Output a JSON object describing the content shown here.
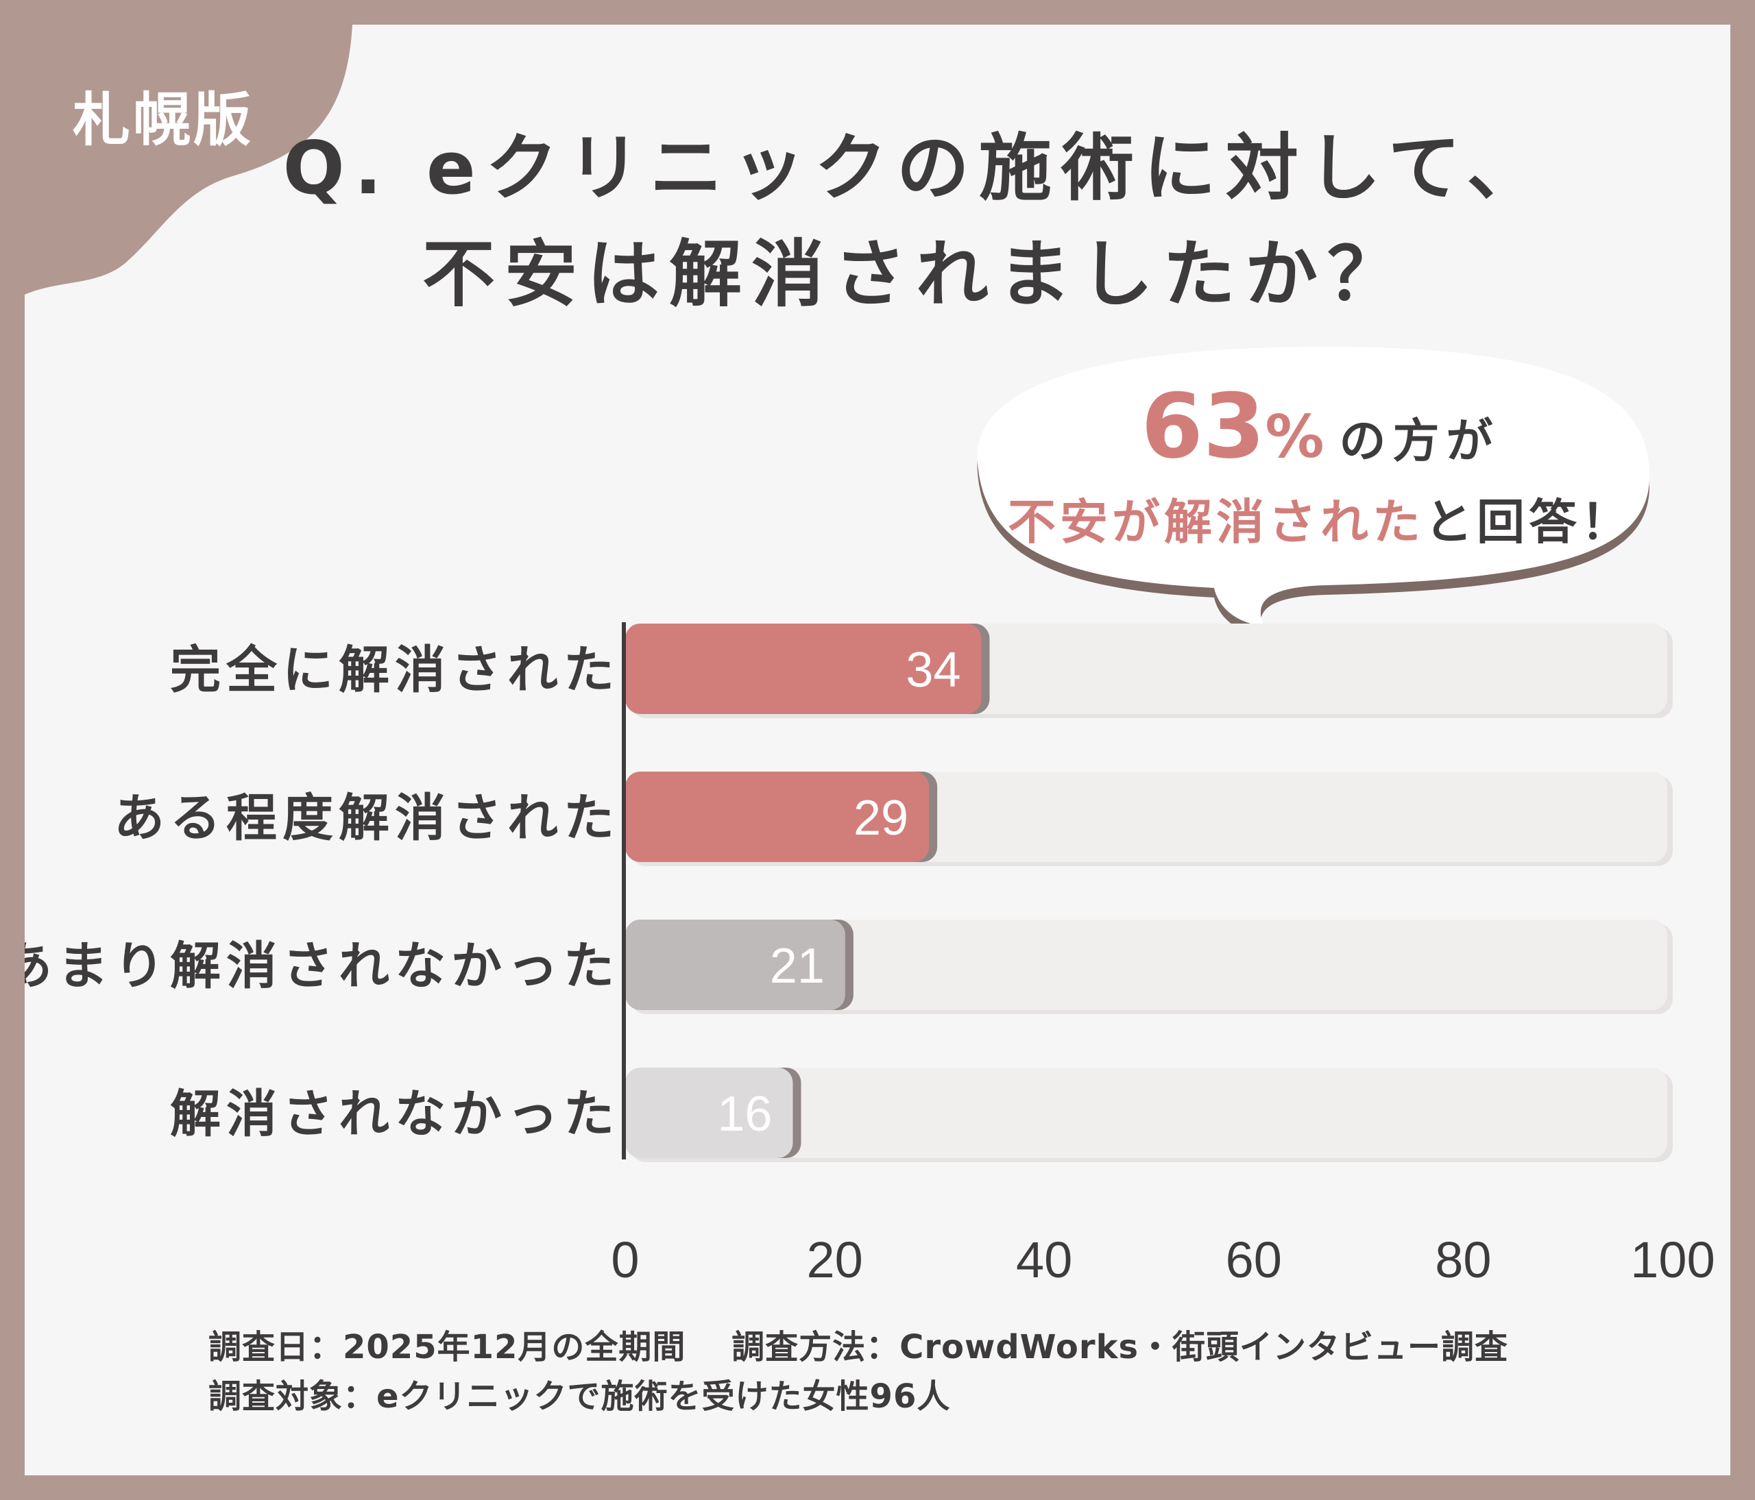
{
  "region_label": "札幌版",
  "title_line1": "Q. eクリニックの施術に対して、",
  "title_line2": "不安は解消されましたか？",
  "callout": {
    "percent": "63",
    "percent_sign": "%",
    "line1_suffix": "の方が",
    "line2_highlight": "不安が解消された",
    "line2_rest": "と回答！"
  },
  "colors": {
    "positive": "#d17e7b",
    "negative_dark": "#bdbab9",
    "negative_light": "#dcdadb",
    "track": "#f1eeee",
    "frame": "#b19891"
  },
  "chart_data": {
    "type": "bar",
    "orientation": "horizontal",
    "categories": [
      "完全に解消された",
      "ある程度解消された",
      "あまり解消されなかった",
      "解消されなかった"
    ],
    "values": [
      34,
      29,
      21,
      16
    ],
    "xlim": [
      0,
      100
    ],
    "xticks": [
      "0",
      "20",
      "40",
      "60",
      "80",
      "100"
    ],
    "grid": false
  },
  "footnotes": {
    "line1": "調査日：2025年12月の全期間　 調査方法：CrowdWorks・街頭インタビュー調査",
    "line2": "調査対象：eクリニックで施術を受けた女性96人"
  }
}
